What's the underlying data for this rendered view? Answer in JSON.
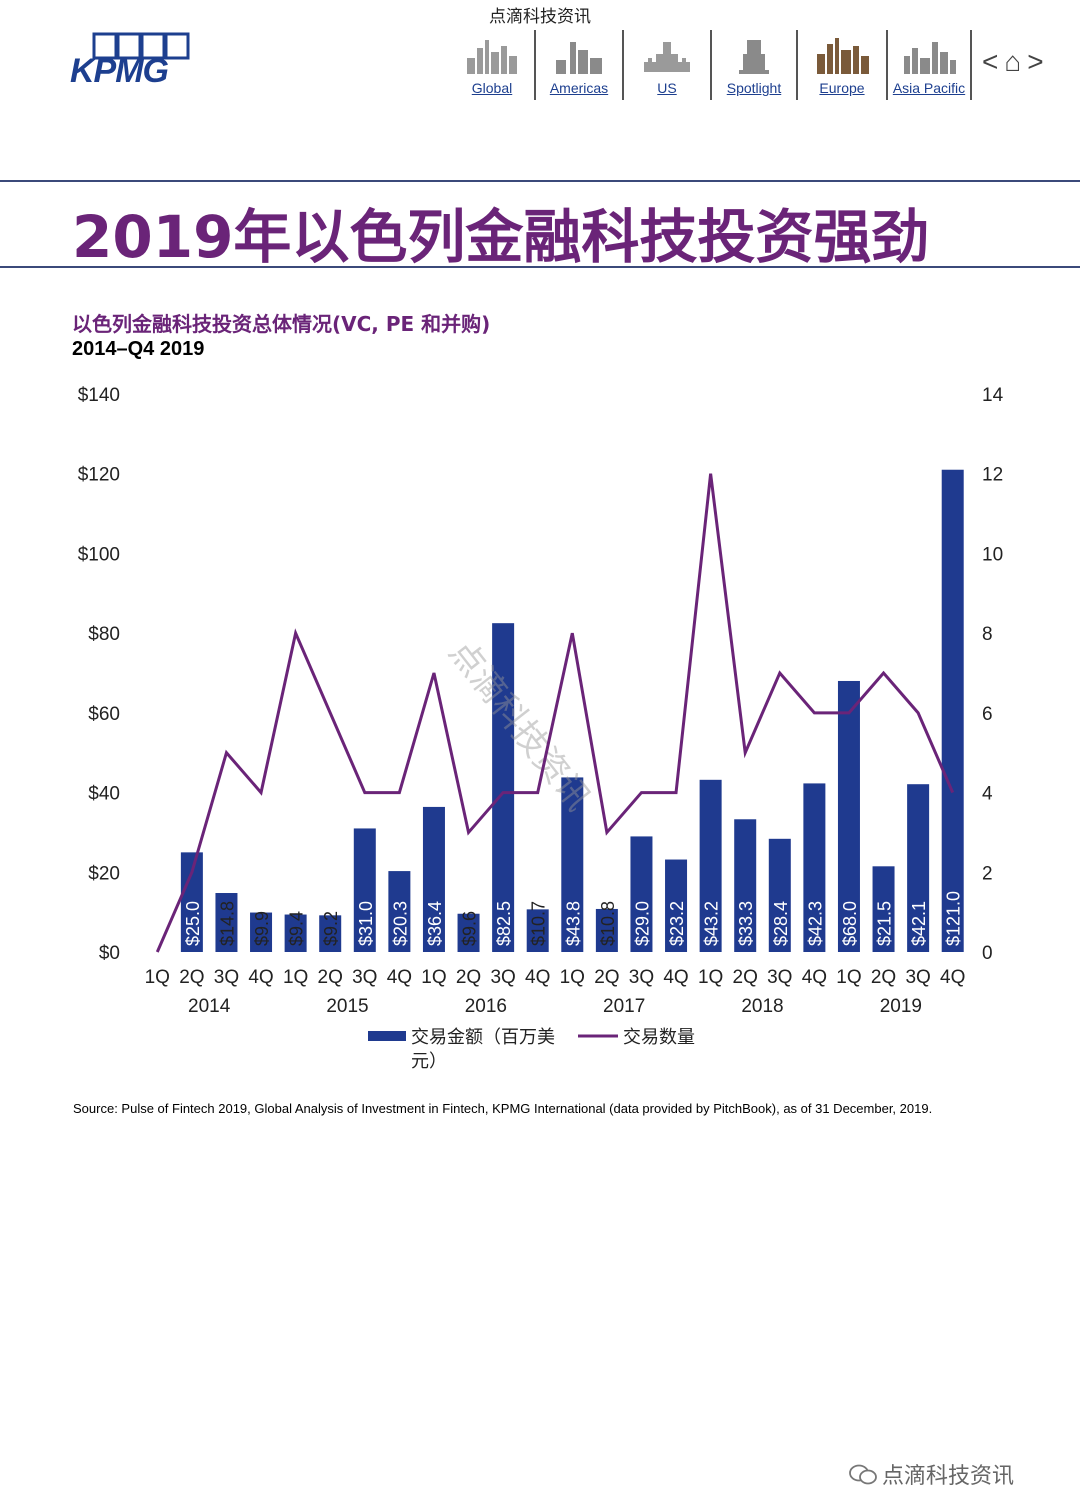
{
  "header": {
    "top_caption": "点滴科技资讯",
    "logo_text": "KPMG",
    "nav": [
      {
        "label": "Global",
        "icon": "skyline-global-icon",
        "width": 86
      },
      {
        "label": "Americas",
        "icon": "statue-liberty-icon",
        "width": 88
      },
      {
        "label": "US",
        "icon": "capitol-skyline-icon",
        "width": 88
      },
      {
        "label": "Spotlight",
        "icon": "spotlight-bust-icon",
        "width": 86
      },
      {
        "label": "Europe",
        "icon": "europe-skyline-icon",
        "width": 90
      },
      {
        "label": "Asia Pacific",
        "icon": "asia-skyline-icon",
        "width": 84
      }
    ],
    "prev_glyph": "<",
    "home_glyph": "⌂",
    "next_glyph": ">"
  },
  "page_title": "2019年以色列金融科技投资强劲",
  "chart_data": {
    "type": "bar",
    "title": "以色列金融科技投资总体情况(VC, PE 和并购)",
    "subtitle": "2014–Q4 2019",
    "categories": [
      "1Q",
      "2Q",
      "3Q",
      "4Q",
      "1Q",
      "2Q",
      "3Q",
      "4Q",
      "1Q",
      "2Q",
      "3Q",
      "4Q",
      "1Q",
      "2Q",
      "3Q",
      "4Q",
      "1Q",
      "2Q",
      "3Q",
      "4Q",
      "1Q",
      "2Q",
      "3Q",
      "4Q"
    ],
    "years": [
      "2014",
      "2015",
      "2016",
      "2017",
      "2018",
      "2019"
    ],
    "y_left_ticks": [
      "$0",
      "$20",
      "$40",
      "$60",
      "$80",
      "$100",
      "$120",
      "$140"
    ],
    "y_left_lim": [
      0,
      140
    ],
    "y_right_ticks": [
      "0",
      "2",
      "4",
      "6",
      "8",
      "10",
      "12",
      "14"
    ],
    "y_right_lim": [
      0,
      14
    ],
    "series": [
      {
        "name": "交易金额（百万美元）",
        "type": "bar",
        "color": "#1f3a8f",
        "values": [
          null,
          25.0,
          14.8,
          9.9,
          9.4,
          9.2,
          31.0,
          20.3,
          36.4,
          9.6,
          82.5,
          10.7,
          43.8,
          10.8,
          29.0,
          23.2,
          43.2,
          33.3,
          28.4,
          42.3,
          68.0,
          21.5,
          42.1,
          121.0
        ],
        "labels": [
          "",
          "$25.0",
          "$14.8",
          "$9.9",
          "$9.4",
          "$9.2",
          "$31.0",
          "$20.3",
          "$36.4",
          "$9.6",
          "$82.5",
          "$10.7",
          "$43.8",
          "$10.8",
          "$29.0",
          "$23.2",
          "$43.2",
          "$33.3",
          "$28.4",
          "$42.3",
          "$68.0",
          "$21.5",
          "$42.1",
          "$121.0"
        ]
      },
      {
        "name": "交易数量",
        "type": "line",
        "color": "#6a2478",
        "values": [
          0,
          2,
          5,
          4,
          8,
          6,
          4,
          4,
          7,
          3,
          4,
          4,
          8,
          3,
          4,
          4,
          12,
          5,
          7,
          6,
          6,
          7,
          6,
          4
        ]
      }
    ],
    "legend_labels": [
      "交易金额（百万美",
      "元）",
      "交易数量"
    ],
    "legend": "bottom",
    "grid": false
  },
  "watermark": "点滴科技资讯",
  "source": "Source: Pulse of Fintech 2019, Global Analysis of Investment in Fintech, KPMG International (data provided by PitchBook), as of 31 December, 2019.",
  "footer_mark": "点滴科技资讯"
}
